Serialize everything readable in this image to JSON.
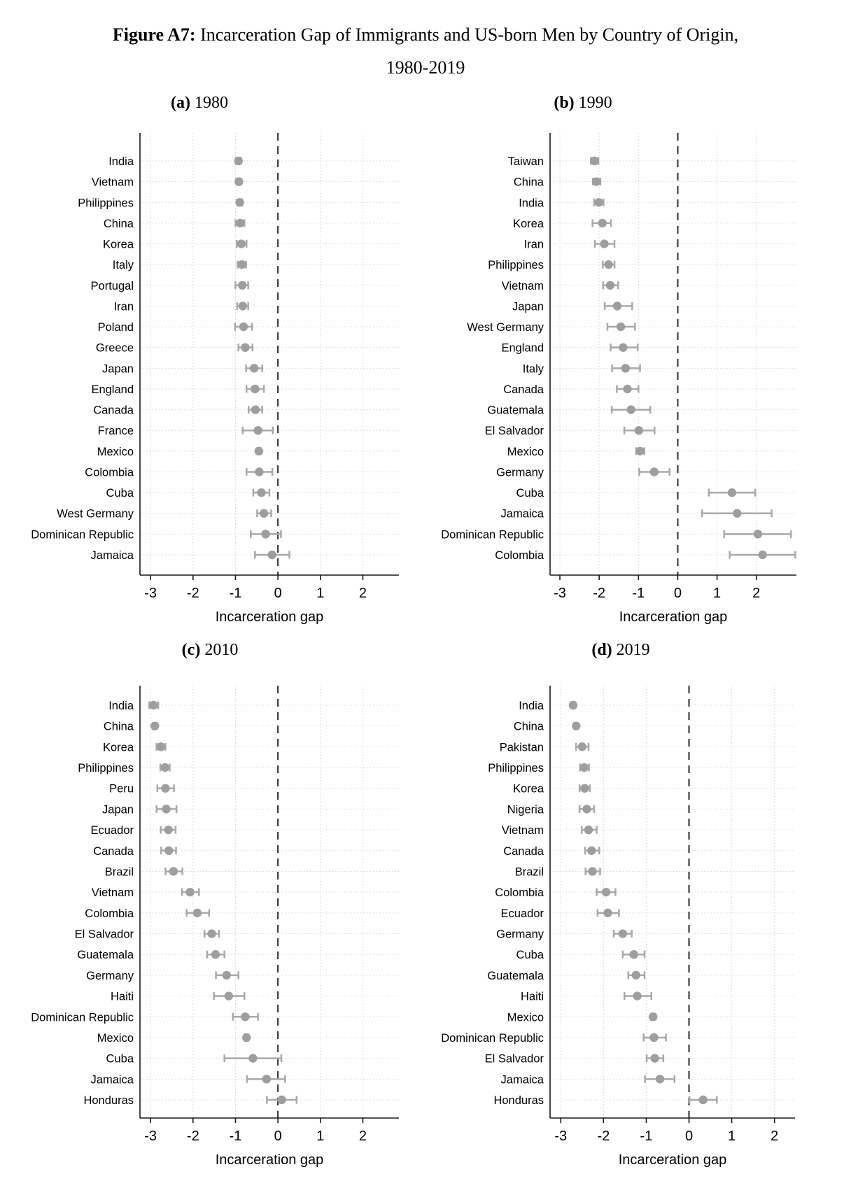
{
  "figure": {
    "title_bold": "Figure A7:",
    "title_rest": "Incarceration Gap of Immigrants and US-born Men by Country of Origin,",
    "title_line2": "1980-2019"
  },
  "colors": {
    "marker": "#9e9e9e",
    "error_bar": "#a8a8a8",
    "zero_line": "#3f3f3f",
    "grid": "#d4d4d4",
    "axis": "#1a1a1a"
  },
  "chart_data": [
    {
      "type": "scatter",
      "panel_label": "(a)",
      "panel_year": "1980",
      "xlabel": "Incarceration gap",
      "xlim": [
        -3.25,
        2.85
      ],
      "xticks": [
        -3,
        -2,
        -1,
        0,
        1,
        2
      ],
      "zero_line": 0,
      "grid": "dotted",
      "series": [
        {
          "name": "India",
          "value": -0.93,
          "ci": [
            -0.99,
            -0.87
          ]
        },
        {
          "name": "Vietnam",
          "value": -0.92,
          "ci": [
            -0.98,
            -0.86
          ]
        },
        {
          "name": "Philippines",
          "value": -0.9,
          "ci": [
            -0.96,
            -0.84
          ]
        },
        {
          "name": "China",
          "value": -0.89,
          "ci": [
            -1.0,
            -0.79
          ]
        },
        {
          "name": "Korea",
          "value": -0.86,
          "ci": [
            -0.97,
            -0.74
          ]
        },
        {
          "name": "Italy",
          "value": -0.85,
          "ci": [
            -0.95,
            -0.75
          ]
        },
        {
          "name": "Portugal",
          "value": -0.84,
          "ci": [
            -1.0,
            -0.7
          ]
        },
        {
          "name": "Iran",
          "value": -0.83,
          "ci": [
            -0.96,
            -0.7
          ]
        },
        {
          "name": "Poland",
          "value": -0.81,
          "ci": [
            -1.01,
            -0.61
          ]
        },
        {
          "name": "Greece",
          "value": -0.77,
          "ci": [
            -0.93,
            -0.6
          ]
        },
        {
          "name": "Japan",
          "value": -0.56,
          "ci": [
            -0.75,
            -0.37
          ]
        },
        {
          "name": "England",
          "value": -0.54,
          "ci": [
            -0.74,
            -0.33
          ]
        },
        {
          "name": "Canada",
          "value": -0.53,
          "ci": [
            -0.69,
            -0.37
          ]
        },
        {
          "name": "France",
          "value": -0.47,
          "ci": [
            -0.83,
            -0.12
          ]
        },
        {
          "name": "Mexico",
          "value": -0.45,
          "ci": [
            -0.5,
            -0.4
          ]
        },
        {
          "name": "Colombia",
          "value": -0.44,
          "ci": [
            -0.74,
            -0.13
          ]
        },
        {
          "name": "Cuba",
          "value": -0.39,
          "ci": [
            -0.58,
            -0.2
          ]
        },
        {
          "name": "West Germany",
          "value": -0.33,
          "ci": [
            -0.49,
            -0.16
          ]
        },
        {
          "name": "Dominican Republic",
          "value": -0.29,
          "ci": [
            -0.64,
            0.07
          ]
        },
        {
          "name": "Jamaica",
          "value": -0.14,
          "ci": [
            -0.54,
            0.27
          ]
        }
      ]
    },
    {
      "type": "scatter",
      "panel_label": "(b)",
      "panel_year": "1990",
      "xlabel": "Incarceration gap",
      "xlim": [
        -3.25,
        3.02
      ],
      "xticks": [
        -3,
        -2,
        -1,
        0,
        1,
        2
      ],
      "zero_line": 0,
      "grid": "dotted",
      "series": [
        {
          "name": "Taiwan",
          "value": -2.12,
          "ci": [
            -2.21,
            -2.02
          ]
        },
        {
          "name": "China",
          "value": -2.07,
          "ci": [
            -2.16,
            -1.97
          ]
        },
        {
          "name": "India",
          "value": -2.01,
          "ci": [
            -2.13,
            -1.89
          ]
        },
        {
          "name": "Korea",
          "value": -1.92,
          "ci": [
            -2.17,
            -1.7
          ]
        },
        {
          "name": "Iran",
          "value": -1.87,
          "ci": [
            -2.11,
            -1.61
          ]
        },
        {
          "name": "Philippines",
          "value": -1.76,
          "ci": [
            -1.91,
            -1.61
          ]
        },
        {
          "name": "Vietnam",
          "value": -1.72,
          "ci": [
            -1.9,
            -1.52
          ]
        },
        {
          "name": "Japan",
          "value": -1.54,
          "ci": [
            -1.86,
            -1.16
          ]
        },
        {
          "name": "West Germany",
          "value": -1.45,
          "ci": [
            -1.79,
            -1.09
          ]
        },
        {
          "name": "England",
          "value": -1.39,
          "ci": [
            -1.71,
            -1.02
          ]
        },
        {
          "name": "Italy",
          "value": -1.33,
          "ci": [
            -1.67,
            -0.96
          ]
        },
        {
          "name": "Canada",
          "value": -1.28,
          "ci": [
            -1.55,
            -1.0
          ]
        },
        {
          "name": "Guatemala",
          "value": -1.19,
          "ci": [
            -1.68,
            -0.7
          ]
        },
        {
          "name": "El Salvador",
          "value": -0.99,
          "ci": [
            -1.36,
            -0.59
          ]
        },
        {
          "name": "Mexico",
          "value": -0.96,
          "ci": [
            -1.06,
            -0.85
          ]
        },
        {
          "name": "Germany",
          "value": -0.6,
          "ci": [
            -0.98,
            -0.21
          ]
        },
        {
          "name": "Cuba",
          "value": 1.38,
          "ci": [
            0.79,
            1.97
          ]
        },
        {
          "name": "Jamaica",
          "value": 1.51,
          "ci": [
            0.62,
            2.39
          ]
        },
        {
          "name": "Dominican Republic",
          "value": 2.04,
          "ci": [
            1.18,
            2.88
          ]
        },
        {
          "name": "Colombia",
          "value": 2.16,
          "ci": [
            1.32,
            2.99
          ]
        }
      ]
    },
    {
      "type": "scatter",
      "panel_label": "(c)",
      "panel_year": "2010",
      "xlabel": "Incarceration gap",
      "xlim": [
        -3.25,
        2.85
      ],
      "xticks": [
        -3,
        -2,
        -1,
        0,
        1,
        2
      ],
      "zero_line": 0,
      "grid": "dotted",
      "series": [
        {
          "name": "India",
          "value": -2.93,
          "ci": [
            -3.03,
            -2.82
          ]
        },
        {
          "name": "China",
          "value": -2.9,
          "ci": [
            -2.95,
            -2.85
          ]
        },
        {
          "name": "Korea",
          "value": -2.76,
          "ci": [
            -2.86,
            -2.65
          ]
        },
        {
          "name": "Philippines",
          "value": -2.66,
          "ci": [
            -2.77,
            -2.55
          ]
        },
        {
          "name": "Peru",
          "value": -2.65,
          "ci": [
            -2.84,
            -2.45
          ]
        },
        {
          "name": "Japan",
          "value": -2.63,
          "ci": [
            -2.86,
            -2.39
          ]
        },
        {
          "name": "Ecuador",
          "value": -2.58,
          "ci": [
            -2.76,
            -2.41
          ]
        },
        {
          "name": "Canada",
          "value": -2.57,
          "ci": [
            -2.75,
            -2.4
          ]
        },
        {
          "name": "Brazil",
          "value": -2.46,
          "ci": [
            -2.65,
            -2.25
          ]
        },
        {
          "name": "Vietnam",
          "value": -2.07,
          "ci": [
            -2.26,
            -1.86
          ]
        },
        {
          "name": "Colombia",
          "value": -1.9,
          "ci": [
            -2.15,
            -1.62
          ]
        },
        {
          "name": "El Salvador",
          "value": -1.56,
          "ci": [
            -1.73,
            -1.39
          ]
        },
        {
          "name": "Guatemala",
          "value": -1.47,
          "ci": [
            -1.67,
            -1.26
          ]
        },
        {
          "name": "Germany",
          "value": -1.21,
          "ci": [
            -1.46,
            -0.93
          ]
        },
        {
          "name": "Haiti",
          "value": -1.16,
          "ci": [
            -1.51,
            -0.79
          ]
        },
        {
          "name": "Dominican Republic",
          "value": -0.77,
          "ci": [
            -1.06,
            -0.47
          ]
        },
        {
          "name": "Mexico",
          "value": -0.74,
          "ci": [
            -0.79,
            -0.69
          ]
        },
        {
          "name": "Cuba",
          "value": -0.59,
          "ci": [
            -1.26,
            0.08
          ]
        },
        {
          "name": "Jamaica",
          "value": -0.27,
          "ci": [
            -0.73,
            0.17
          ]
        },
        {
          "name": "Honduras",
          "value": 0.09,
          "ci": [
            -0.26,
            0.44
          ]
        }
      ]
    },
    {
      "type": "scatter",
      "panel_label": "(d)",
      "panel_year": "2019",
      "xlabel": "Incarceration gap",
      "xlim": [
        -3.25,
        2.48
      ],
      "xticks": [
        -3,
        -2,
        -1,
        0,
        1,
        2
      ],
      "zero_line": 0,
      "grid": "dotted",
      "series": [
        {
          "name": "India",
          "value": -2.71,
          "ci": [
            -2.76,
            -2.66
          ]
        },
        {
          "name": "China",
          "value": -2.64,
          "ci": [
            -2.68,
            -2.6
          ]
        },
        {
          "name": "Pakistan",
          "value": -2.5,
          "ci": [
            -2.64,
            -2.35
          ]
        },
        {
          "name": "Philippines",
          "value": -2.45,
          "ci": [
            -2.55,
            -2.34
          ]
        },
        {
          "name": "Korea",
          "value": -2.44,
          "ci": [
            -2.56,
            -2.32
          ]
        },
        {
          "name": "Nigeria",
          "value": -2.39,
          "ci": [
            -2.56,
            -2.22
          ]
        },
        {
          "name": "Vietnam",
          "value": -2.35,
          "ci": [
            -2.51,
            -2.16
          ]
        },
        {
          "name": "Canada",
          "value": -2.28,
          "ci": [
            -2.43,
            -2.1
          ]
        },
        {
          "name": "Brazil",
          "value": -2.26,
          "ci": [
            -2.42,
            -2.08
          ]
        },
        {
          "name": "Colombia",
          "value": -1.94,
          "ci": [
            -2.16,
            -1.72
          ]
        },
        {
          "name": "Ecuador",
          "value": -1.9,
          "ci": [
            -2.14,
            -1.64
          ]
        },
        {
          "name": "Germany",
          "value": -1.55,
          "ci": [
            -1.76,
            -1.34
          ]
        },
        {
          "name": "Cuba",
          "value": -1.29,
          "ci": [
            -1.55,
            -1.04
          ]
        },
        {
          "name": "Guatemala",
          "value": -1.24,
          "ci": [
            -1.42,
            -1.04
          ]
        },
        {
          "name": "Haiti",
          "value": -1.21,
          "ci": [
            -1.51,
            -0.88
          ]
        },
        {
          "name": "Mexico",
          "value": -0.84,
          "ci": [
            -0.89,
            -0.79
          ]
        },
        {
          "name": "Dominican Republic",
          "value": -0.82,
          "ci": [
            -1.06,
            -0.54
          ]
        },
        {
          "name": "El Salvador",
          "value": -0.8,
          "ci": [
            -0.99,
            -0.6
          ]
        },
        {
          "name": "Jamaica",
          "value": -0.68,
          "ci": [
            -1.03,
            -0.34
          ]
        },
        {
          "name": "Honduras",
          "value": 0.33,
          "ci": [
            0.01,
            0.65
          ]
        }
      ]
    }
  ]
}
